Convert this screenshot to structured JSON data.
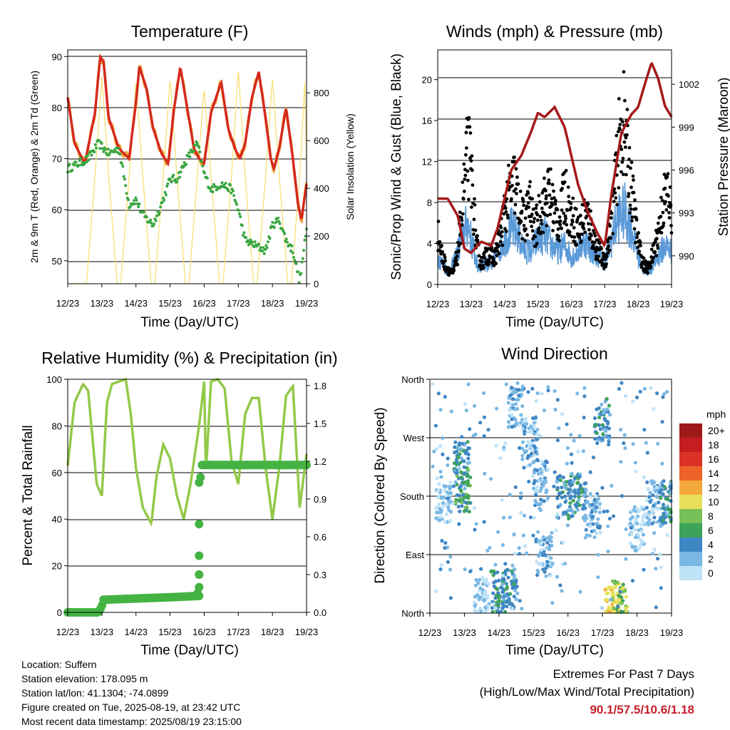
{
  "colors": {
    "red": "#d42a1e",
    "orange": "#f0a33a",
    "green": "#3aa640",
    "yellow": "#f5de6e",
    "blue": "#5a9ad8",
    "black": "#000000",
    "maroon": "#a51a1a",
    "rh": "#93c94a",
    "precip": "#45b343"
  },
  "panels": [
    {
      "title": "Temperature (F)",
      "xlabel": "Time (Day/UTC)",
      "ylabel": "2m & 9m T (Red, Orange) & 2m Td (Green)",
      "ylabel_right": "Solar Insolation (Yellow)",
      "yticks": [
        "50",
        "60",
        "70",
        "80",
        "90"
      ],
      "yticks_right": [
        "0",
        "200",
        "400",
        "600",
        "800"
      ]
    },
    {
      "title": "Winds (mph) & Pressure (mb)",
      "xlabel": "Time (Day/UTC)",
      "ylabel": "Sonic/Prop Wind & Gust (Blue, Black)",
      "ylabel_right": "Station Pressure (Maroon)",
      "yticks": [
        "0",
        "4",
        "8",
        "12",
        "16",
        "20"
      ],
      "yticks_right": [
        "990",
        "993",
        "996",
        "999",
        "1002"
      ]
    },
    {
      "title": "Relative Humidity (%) & Precipitation (in)",
      "xlabel": "Time (Day/UTC)",
      "ylabel": "Percent & Total Rainfall",
      "yticks": [
        "0",
        "20",
        "40",
        "60",
        "80",
        "100"
      ],
      "yticks_right": [
        "0.0",
        "0.3",
        "0.6",
        "0.9",
        "1.2",
        "1.5",
        "1.8"
      ]
    },
    {
      "title": "Wind Direction",
      "xlabel": "Time (Day/UTC)",
      "ylabel": "Direction (Colored By Speed)",
      "yticks": [
        "North",
        "East",
        "South",
        "West",
        "North"
      ]
    }
  ],
  "xticks": [
    "12/23",
    "13/23",
    "14/23",
    "15/23",
    "16/23",
    "17/23",
    "18/23",
    "19/23"
  ],
  "legend": {
    "title": "mph",
    "labels": [
      "20+",
      "18",
      "16",
      "14",
      "12",
      "10",
      "8",
      "6",
      "4",
      "2",
      "0"
    ],
    "colors": [
      "#9e1a1a",
      "#c41e22",
      "#dc3226",
      "#ee6428",
      "#f5a83c",
      "#e8e05a",
      "#78c058",
      "#3ea35a",
      "#3f86c4",
      "#7ab8e4",
      "#bfe3f7"
    ]
  },
  "info": {
    "location": "Location: Suffern",
    "elevation": "Station elevation: 178.095 m",
    "latlon": "Station lat/lon: 41.1304; -74.0899",
    "created": "Figure created on Tue, 2025-08-19, at 23:42 UTC",
    "recent": "Most recent data timestamp: 2025/08/19 23:15:00"
  },
  "extremes": {
    "heading": "Extremes For Past 7 Days",
    "subheading": "(High/Low/Max Wind/Total Precipitation)",
    "values": "90.1/57.5/10.6/1.18"
  },
  "chart_data": [
    {
      "type": "line",
      "title": "Temperature (F)",
      "xlabel": "Time (Day/UTC)",
      "ylabel": "2m & 9m T (Red, Orange) & 2m Td (Green)",
      "ylabel_right": "Solar Insolation (Yellow)",
      "x_unit": "days since 12/23",
      "xlim": [
        0,
        7
      ],
      "ylim": [
        45.5,
        91.3
      ],
      "ylim_right": [
        0,
        980
      ],
      "series": [
        {
          "name": "T",
          "color": "#d42a1e",
          "x": [
            0,
            0.2,
            0.5,
            0.8,
            0.95,
            1.05,
            1.2,
            1.5,
            1.8,
            2.0,
            2.1,
            2.3,
            2.5,
            2.75,
            2.95,
            3.1,
            3.3,
            3.5,
            3.7,
            3.85,
            4.0,
            4.2,
            4.5,
            4.7,
            4.9,
            5.05,
            5.2,
            5.4,
            5.6,
            5.8,
            5.95,
            6.05,
            6.2,
            6.4,
            6.6,
            6.75,
            6.85,
            7.0
          ],
          "y": [
            82,
            73,
            69,
            79,
            90,
            89,
            78,
            72,
            70,
            81,
            88,
            84,
            76,
            71,
            69,
            79,
            88,
            80,
            72,
            70,
            69,
            79,
            85,
            76,
            72,
            70,
            73,
            82,
            87,
            78,
            70,
            68,
            72,
            80,
            70,
            61,
            58,
            65
          ]
        },
        {
          "name": "Td",
          "color": "#3aa640",
          "x": [
            0,
            0.3,
            0.6,
            0.9,
            1.2,
            1.5,
            1.8,
            2.0,
            2.2,
            2.5,
            2.8,
            3.0,
            3.2,
            3.5,
            3.8,
            4.0,
            4.2,
            4.5,
            4.8,
            5.0,
            5.2,
            5.5,
            5.8,
            6.0,
            6.2,
            6.4,
            6.6,
            6.8,
            7.0
          ],
          "y": [
            68,
            69,
            70,
            73,
            71,
            72,
            61,
            62,
            59,
            57,
            62,
            66,
            66,
            70,
            73,
            67,
            64,
            65,
            64,
            60,
            54,
            53,
            52,
            57,
            58,
            54,
            52,
            46,
            56
          ]
        },
        {
          "name": "Solar",
          "axis": "right",
          "color": "#f5de6e",
          "x": [
            0,
            0.55,
            0.8,
            1.0,
            1.2,
            1.45,
            1.55,
            1.8,
            2.0,
            2.2,
            2.45,
            2.55,
            2.8,
            3.0,
            3.2,
            3.45,
            3.55,
            3.8,
            4.0,
            4.2,
            4.45,
            4.55,
            4.8,
            5.0,
            5.2,
            5.45,
            5.55,
            5.8,
            6.0,
            6.2,
            6.45,
            6.55,
            6.8,
            6.95,
            7.0
          ],
          "y": [
            0,
            0,
            450,
            870,
            450,
            0,
            0,
            450,
            850,
            450,
            0,
            0,
            450,
            860,
            450,
            0,
            0,
            450,
            820,
            450,
            0,
            0,
            450,
            900,
            450,
            0,
            0,
            450,
            860,
            450,
            0,
            0,
            450,
            850,
            500
          ]
        }
      ]
    },
    {
      "type": "line",
      "title": "Winds (mph) & Pressure (mb)",
      "xlabel": "Time (Day/UTC)",
      "ylabel": "Sonic/Prop Wind & Gust (Blue, Black)",
      "ylabel_right": "Station Pressure (Maroon)",
      "x_unit": "days since 12/23",
      "xlim": [
        0,
        7
      ],
      "ylim": [
        0,
        22.9
      ],
      "ylim_right": [
        988.0,
        1004.4
      ],
      "series": [
        {
          "name": "Pressure",
          "axis": "right",
          "color": "#a51a1a",
          "x": [
            0,
            0.3,
            0.6,
            0.8,
            1.0,
            1.3,
            1.6,
            1.8,
            2.0,
            2.2,
            2.5,
            2.8,
            3.0,
            3.2,
            3.5,
            3.8,
            4.0,
            4.2,
            4.5,
            4.8,
            5.0,
            5.2,
            5.5,
            5.8,
            6.0,
            6.2,
            6.4,
            6.6,
            6.8,
            7.0
          ],
          "y": [
            994,
            994,
            992.8,
            990.5,
            990.2,
            991,
            990.7,
            992,
            994,
            996,
            997,
            998.7,
            1000,
            999.7,
            1000.4,
            999,
            997,
            995,
            993,
            991.5,
            990.7,
            994.3,
            998.6,
            999.9,
            1000.4,
            1002,
            1003.5,
            1002.4,
            1000.5,
            999.7
          ]
        },
        {
          "name": "Wind",
          "color": "#5a9ad8",
          "x": [
            0,
            0.3,
            0.5,
            0.7,
            0.9,
            1.0,
            1.2,
            1.4,
            1.6,
            1.8,
            2.0,
            2.2,
            2.4,
            2.6,
            2.8,
            3.0,
            3.2,
            3.4,
            3.6,
            3.8,
            4.0,
            4.2,
            4.4,
            4.6,
            4.8,
            5.0,
            5.2,
            5.4,
            5.6,
            5.8,
            6.0,
            6.2,
            6.4,
            6.6,
            6.8,
            7.0
          ],
          "y": [
            2.5,
            1.2,
            2,
            4,
            5.5,
            4,
            1.5,
            2,
            1.5,
            3,
            4,
            5,
            4.5,
            3,
            3,
            4,
            4.5,
            3.5,
            3,
            3.5,
            2.5,
            3,
            4,
            3,
            2.5,
            2,
            4,
            6,
            6.5,
            5,
            2.5,
            1,
            1.5,
            2.5,
            3.5,
            3
          ]
        },
        {
          "name": "Gust",
          "color": "#000000",
          "x": [
            0,
            0.15,
            0.3,
            0.45,
            0.6,
            0.75,
            0.9,
            1.0,
            1.15,
            1.3,
            1.5,
            1.7,
            1.9,
            2.0,
            2.15,
            2.3,
            2.45,
            2.6,
            2.75,
            2.9,
            3.05,
            3.2,
            3.35,
            3.5,
            3.65,
            3.8,
            3.95,
            4.1,
            4.25,
            4.4,
            4.55,
            4.7,
            4.85,
            5.0,
            5.15,
            5.3,
            5.4,
            5.55,
            5.7,
            5.85,
            6.0,
            6.15,
            6.3,
            6.45,
            6.6,
            6.75,
            6.9,
            7.0
          ],
          "y": [
            5,
            2.5,
            1.5,
            1,
            3,
            8,
            13,
            11,
            4,
            2,
            3,
            2.5,
            5,
            7,
            9,
            10,
            7,
            6,
            8,
            5,
            7,
            8,
            9,
            7,
            6,
            9,
            7,
            6,
            5,
            7,
            6,
            4,
            3,
            2,
            5,
            9,
            13,
            16,
            12,
            8,
            4,
            2,
            1.5,
            3,
            5,
            8,
            9,
            6
          ]
        }
      ]
    },
    {
      "type": "line",
      "title": "Relative Humidity (%) & Precipitation (in)",
      "xlabel": "Time (Day/UTC)",
      "ylabel": "Percent & Total Rainfall",
      "x_unit": "days since 12/23",
      "xlim": [
        0,
        7
      ],
      "ylim": [
        0,
        100
      ],
      "ylim_right": [
        0,
        1.85
      ],
      "series": [
        {
          "name": "RH",
          "color": "#93c94a",
          "x": [
            0,
            0.2,
            0.45,
            0.6,
            0.85,
            1.0,
            1.15,
            1.3,
            1.5,
            1.7,
            1.85,
            2.0,
            2.2,
            2.45,
            2.6,
            2.8,
            3.0,
            3.2,
            3.4,
            3.6,
            3.85,
            4.0,
            4.05,
            4.2,
            4.4,
            4.6,
            4.8,
            5.0,
            5.2,
            5.4,
            5.6,
            5.8,
            6.0,
            6.2,
            6.4,
            6.6,
            6.8,
            7.0
          ],
          "y": [
            63,
            90,
            98,
            95,
            55,
            50,
            90,
            98,
            99,
            100,
            85,
            62,
            45,
            38,
            58,
            72,
            66,
            50,
            40,
            55,
            80,
            99,
            60,
            99,
            100,
            96,
            65,
            55,
            85,
            92,
            92,
            62,
            40,
            62,
            93,
            97,
            45,
            68
          ]
        },
        {
          "name": "Precip",
          "axis": "right",
          "color": "#45b343",
          "x": [
            0,
            0.5,
            0.9,
            1.0,
            1.05,
            2.0,
            3.0,
            3.8,
            3.85,
            3.87,
            3.9,
            4.0,
            5.0,
            6.0,
            7.0
          ],
          "y": [
            0,
            0,
            0,
            0.05,
            0.1,
            0.11,
            0.12,
            0.13,
            0.3,
            0.7,
            1.17,
            1.17,
            1.17,
            1.17,
            1.17
          ]
        }
      ]
    },
    {
      "type": "scatter",
      "title": "Wind Direction",
      "xlabel": "Time (Day/UTC)",
      "ylabel": "Direction (Colored By Speed)",
      "x_unit": "days since 12/23",
      "y_unit": "degrees (North=0, East=90, South=180, West=270, North=360)",
      "xlim": [
        0,
        7
      ],
      "ylim": [
        0,
        360
      ],
      "color_scale": "wind speed (mph), bins 0-20+",
      "clusters": [
        {
          "x": 0.4,
          "y": 175,
          "speed": 1
        },
        {
          "x": 0.9,
          "y": 230,
          "speed": 4
        },
        {
          "x": 0.95,
          "y": 190,
          "speed": 6
        },
        {
          "x": 1.5,
          "y": 20,
          "speed": 1
        },
        {
          "x": 2.0,
          "y": 30,
          "speed": 5
        },
        {
          "x": 2.3,
          "y": 35,
          "speed": 4
        },
        {
          "x": 2.5,
          "y": 320,
          "speed": 2
        },
        {
          "x": 2.9,
          "y": 270,
          "speed": 2
        },
        {
          "x": 3.2,
          "y": 200,
          "speed": 2
        },
        {
          "x": 3.3,
          "y": 90,
          "speed": 2
        },
        {
          "x": 3.9,
          "y": 180,
          "speed": 4
        },
        {
          "x": 4.3,
          "y": 180,
          "speed": 4
        },
        {
          "x": 4.7,
          "y": 150,
          "speed": 2
        },
        {
          "x": 5.0,
          "y": 295,
          "speed": 4
        },
        {
          "x": 5.3,
          "y": 10,
          "speed": 11
        },
        {
          "x": 5.5,
          "y": 15,
          "speed": 8
        },
        {
          "x": 6.0,
          "y": 130,
          "speed": 1
        },
        {
          "x": 6.5,
          "y": 170,
          "speed": 2
        },
        {
          "x": 6.9,
          "y": 170,
          "speed": 4
        }
      ]
    }
  ]
}
